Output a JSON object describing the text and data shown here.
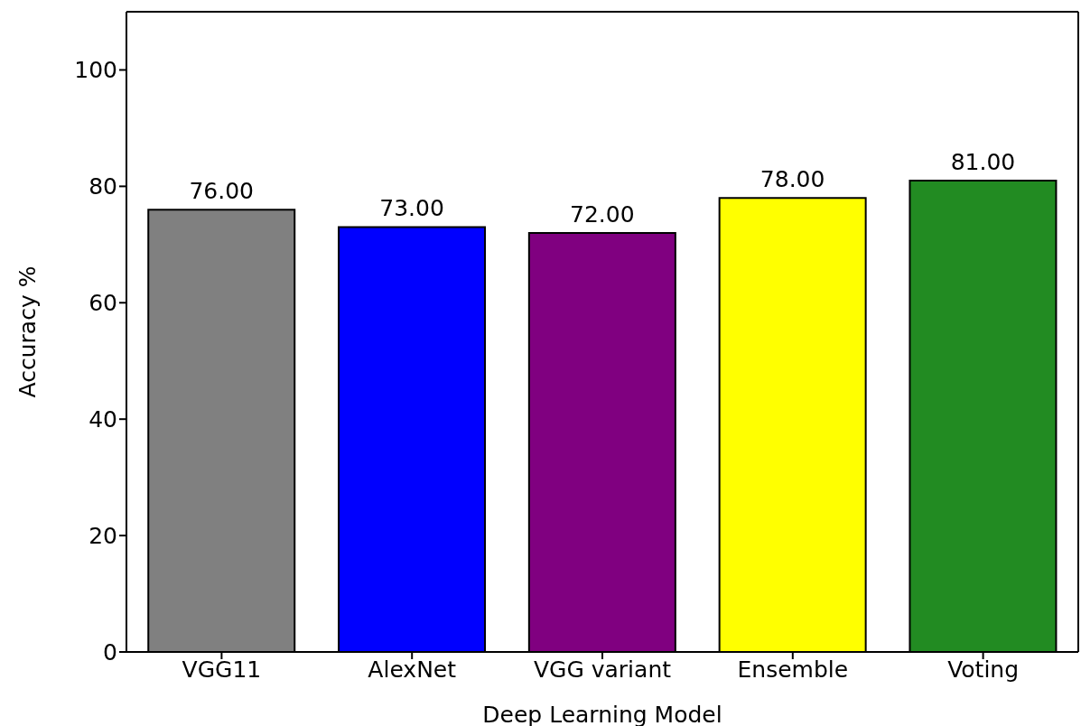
{
  "chart_data": {
    "type": "bar",
    "xlabel": "Deep Learning Model",
    "ylabel": "Accuracy %",
    "categories": [
      "VGG11",
      "AlexNet",
      "VGG variant",
      "Ensemble",
      "Voting"
    ],
    "values": [
      76,
      73,
      72,
      78,
      81
    ],
    "colors": [
      "#808080",
      "#0000ff",
      "#800080",
      "#ffff00",
      "#228b22"
    ],
    "value_labels": [
      "76.00",
      "73.00",
      "72.00",
      "78.00",
      "81.00"
    ],
    "ylim": [
      0,
      110
    ],
    "yticks": [
      0,
      20,
      40,
      60,
      80,
      100
    ],
    "grid": false
  }
}
